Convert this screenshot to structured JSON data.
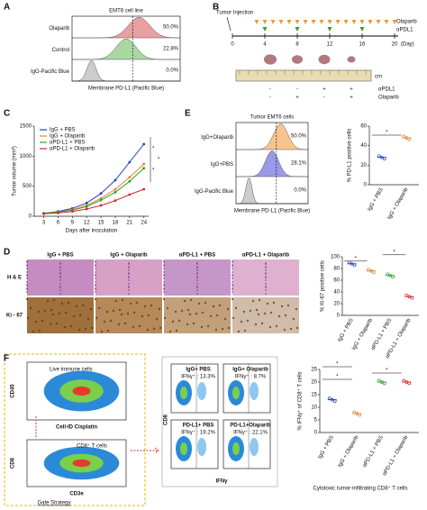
{
  "panel_labels": [
    "A",
    "B",
    "C",
    "D",
    "E",
    "F"
  ],
  "panel_a": {
    "title": "EMT6 cell line",
    "rows": [
      {
        "label": "Olaparib",
        "percent": "50.0%"
      },
      {
        "label": "Control",
        "percent": "22.8%"
      },
      {
        "label": "IgG-Pacific Blue",
        "percent": "0.0%"
      }
    ],
    "x_label": "Membrane PD-L1 (Pacific Blue)"
  },
  "panel_b": {
    "injection": "Tumor Injection",
    "olaparib": "Olaparib",
    "apdl1": "αPDL1",
    "days": [
      0,
      4,
      8,
      12,
      16,
      20
    ],
    "day_unit": "(Day)",
    "scale_unit": "cm",
    "table": [
      {
        "label": "αPDL1",
        "signs": [
          "-",
          "-",
          "+",
          "+"
        ]
      },
      {
        "label": "Olaparib",
        "signs": [
          "-",
          "+",
          "-",
          "+"
        ]
      }
    ]
  },
  "panel_c": {
    "chart_data": {
      "type": "line",
      "y_label": "Tumor volume (mm³)",
      "x_label": "Days after inoculation",
      "x": [
        3,
        6,
        9,
        12,
        15,
        18,
        21,
        24
      ],
      "xlim": [
        1,
        25
      ],
      "xticks": [
        3,
        6,
        9,
        12,
        15,
        18,
        21,
        24
      ],
      "ylim": [
        0,
        1500
      ],
      "yticks": [
        0,
        500,
        1000,
        1500
      ],
      "series": [
        {
          "name": "IgG + PBS",
          "color": "#1f3fbf",
          "values": [
            50,
            80,
            130,
            220,
            380,
            600,
            900,
            1200
          ]
        },
        {
          "name": "IgG + Olaparib",
          "color": "#e8842e",
          "values": [
            50,
            70,
            110,
            180,
            300,
            450,
            650,
            870
          ]
        },
        {
          "name": "αPD-L1 + PBS",
          "color": "#2ca02c",
          "values": [
            50,
            70,
            100,
            160,
            270,
            400,
            580,
            800
          ]
        },
        {
          "name": "αPD-L1 + Olaparib",
          "color": "#d62728",
          "values": [
            40,
            55,
            80,
            120,
            180,
            260,
            360,
            450
          ]
        }
      ],
      "significance": [
        "*",
        "*",
        "*"
      ]
    }
  },
  "panel_d": {
    "columns": [
      "IgG + PBS",
      "IgG + Olaparib",
      "αPD-L1 + PBS",
      "αPD-L1 + Olaparib"
    ],
    "rows": [
      "H & E",
      "Ki - 67"
    ],
    "chart_data": {
      "type": "dot",
      "y_label": "% Ki-67 positive cells",
      "categories": [
        "IgG + PBS",
        "IgG + Olaparib",
        "αPD-L1 + PBS",
        "αPD-L1 + Olaparib"
      ],
      "values": [
        88,
        76,
        68,
        32
      ],
      "colors": [
        "#1f3fbf",
        "#e8842e",
        "#2ca02c",
        "#d62728"
      ],
      "ylim": [
        0,
        100
      ],
      "yticks": [
        0,
        20,
        40,
        60,
        80,
        100
      ],
      "significance": [
        "*",
        "*"
      ]
    }
  },
  "panel_e": {
    "title": "Tumor EMT6 cells",
    "rows": [
      {
        "label": "IgG+Olaparib",
        "percent": "50.0%"
      },
      {
        "label": "IgG+PBS",
        "percent": "28.1%"
      },
      {
        "label": "IgG-Pacific Blue",
        "percent": "0.0%"
      }
    ],
    "x_label": "Membrane PD-L1 (Pacific Blue)",
    "chart_data": {
      "type": "dot",
      "y_label": "% PD-L1 positive cells",
      "categories": [
        "IgG + PBS",
        "IgG + Olaparib"
      ],
      "values": [
        28,
        48
      ],
      "colors": [
        "#1f3fbf",
        "#e8842e"
      ],
      "ylim": [
        0,
        60
      ],
      "yticks": [
        0,
        20,
        40,
        60
      ],
      "significance": [
        "*"
      ]
    }
  },
  "panel_f": {
    "gate_1": "Live immune cells",
    "gate_1_y": "CD45",
    "gate_1_x": "Cell-ID Cisplatin",
    "gate_2": "CD8⁺ T cells",
    "gate_2_y": "CD8",
    "gate_2_x": "CD3e",
    "gate_caption": "Gate Strategy",
    "flow_y": "CD8",
    "flow_x": "IFNγ",
    "plots": [
      {
        "group": "IgG+ PBS",
        "stat": "IFNγ⁺ : 13.3%",
        "color": "#1f3fbf"
      },
      {
        "group": "IgG+ Olaparib",
        "stat": "IFNγ⁺ : 8.7%",
        "color": "#e8842e"
      },
      {
        "group": "PD-L1+ PBS",
        "stat": "IFNγ⁺ : 19.2%",
        "color": "#2ca02c"
      },
      {
        "group": "PD-L1+Olaparib",
        "stat": "IFNγ⁺ : 22.1%",
        "color": "#d62728"
      }
    ],
    "chart_data": {
      "type": "dot",
      "y_label": "% IFNγ⁺ of CD8⁺ T cells",
      "categories": [
        "IgG + PBS",
        "IgG + Olaparib",
        "αPD-L1 + PBS",
        "αPD-L1 + Olaparib"
      ],
      "values": [
        13,
        7.5,
        20,
        20
      ],
      "colors": [
        "#1f3fbf",
        "#e8842e",
        "#2ca02c",
        "#d62728"
      ],
      "ylim": [
        0,
        25
      ],
      "yticks": [
        0,
        5,
        10,
        15,
        20,
        25
      ],
      "significance": [
        "*",
        "*",
        "*"
      ],
      "caption": "Cytotoxic tumor-infiltrating CD8⁺ T cells"
    }
  }
}
